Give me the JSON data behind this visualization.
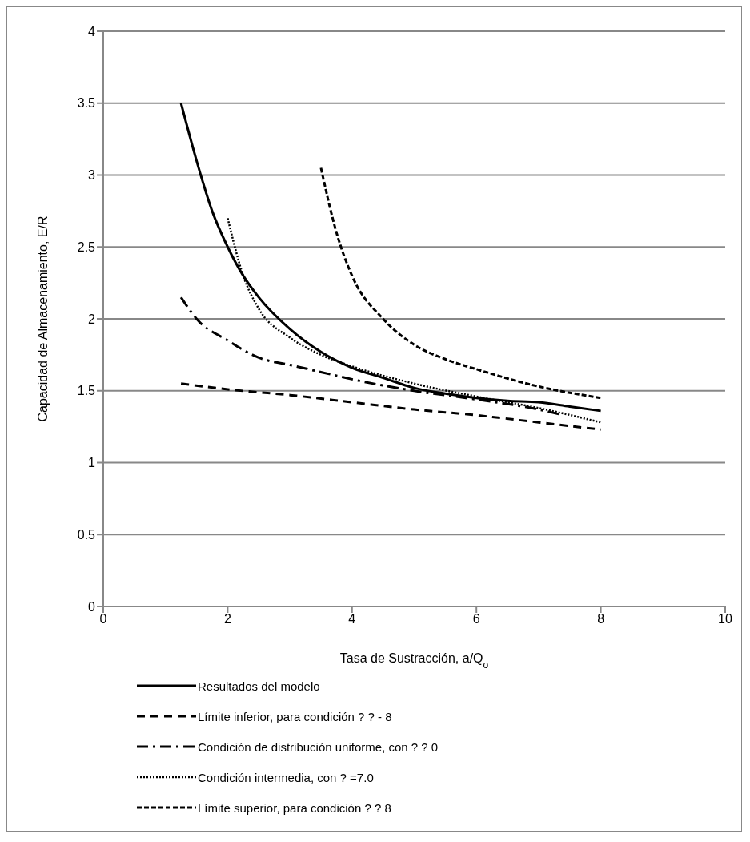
{
  "chart_data": {
    "type": "line",
    "xlabel": "Tasa de Sustracción, a/Q$_{o}$",
    "ylabel": "Capacidad de Almacenamiento, E/R",
    "xlim": [
      0,
      10
    ],
    "xticks": [
      0,
      2,
      4,
      6,
      8,
      10
    ],
    "ylim": [
      0,
      4
    ],
    "yticks": [
      0,
      0.5,
      1,
      1.5,
      2,
      2.5,
      3,
      3.5,
      4
    ],
    "grid": "y",
    "legend": "bottom",
    "marker": "none",
    "series": [
      {
        "name": "Resultados del modelo",
        "color": "#000000",
        "line_style": "solid",
        "x": [
          1.25,
          1.5,
          1.75,
          2,
          2.25,
          2.5,
          3,
          3.5,
          4,
          4.5,
          5,
          5.5,
          6,
          6.5,
          7,
          7.5,
          8
        ],
        "values": [
          3.5,
          3.1,
          2.75,
          2.5,
          2.3,
          2.15,
          1.93,
          1.77,
          1.66,
          1.59,
          1.52,
          1.48,
          1.45,
          1.43,
          1.42,
          1.39,
          1.36
        ]
      },
      {
        "name": "Límite inferior, para condición ? ?  - 8",
        "color": "#000000",
        "line_style": "dashed",
        "x": [
          1.25,
          2,
          3,
          4,
          5,
          6,
          7,
          8
        ],
        "values": [
          1.55,
          1.51,
          1.47,
          1.42,
          1.37,
          1.33,
          1.28,
          1.23
        ]
      },
      {
        "name": "Condición de distribución uniforme, con ? ?  0",
        "color": "#000000",
        "line_style": "dashdot",
        "x": [
          1.25,
          1.5,
          2,
          2.5,
          3,
          3.5,
          4,
          5,
          6,
          7,
          7.4
        ],
        "values": [
          2.15,
          2.0,
          1.85,
          1.73,
          1.68,
          1.63,
          1.58,
          1.5,
          1.44,
          1.37,
          1.33
        ]
      },
      {
        "name": "Condición intermedia, con ? =7.0",
        "color": "#000000",
        "line_style": "dotted",
        "x": [
          2,
          2.25,
          2.5,
          3,
          3.5,
          4,
          5,
          6,
          7,
          8
        ],
        "values": [
          2.7,
          2.3,
          2.07,
          1.87,
          1.75,
          1.67,
          1.55,
          1.46,
          1.38,
          1.28
        ]
      },
      {
        "name": "Límite superior, para condición ? ?  8",
        "color": "#000000",
        "line_style": "shortdash",
        "x": [
          3.5,
          3.75,
          4,
          4.5,
          5,
          5.5,
          6,
          7,
          8
        ],
        "values": [
          3.05,
          2.6,
          2.3,
          2.0,
          1.82,
          1.72,
          1.65,
          1.53,
          1.45
        ]
      }
    ]
  }
}
